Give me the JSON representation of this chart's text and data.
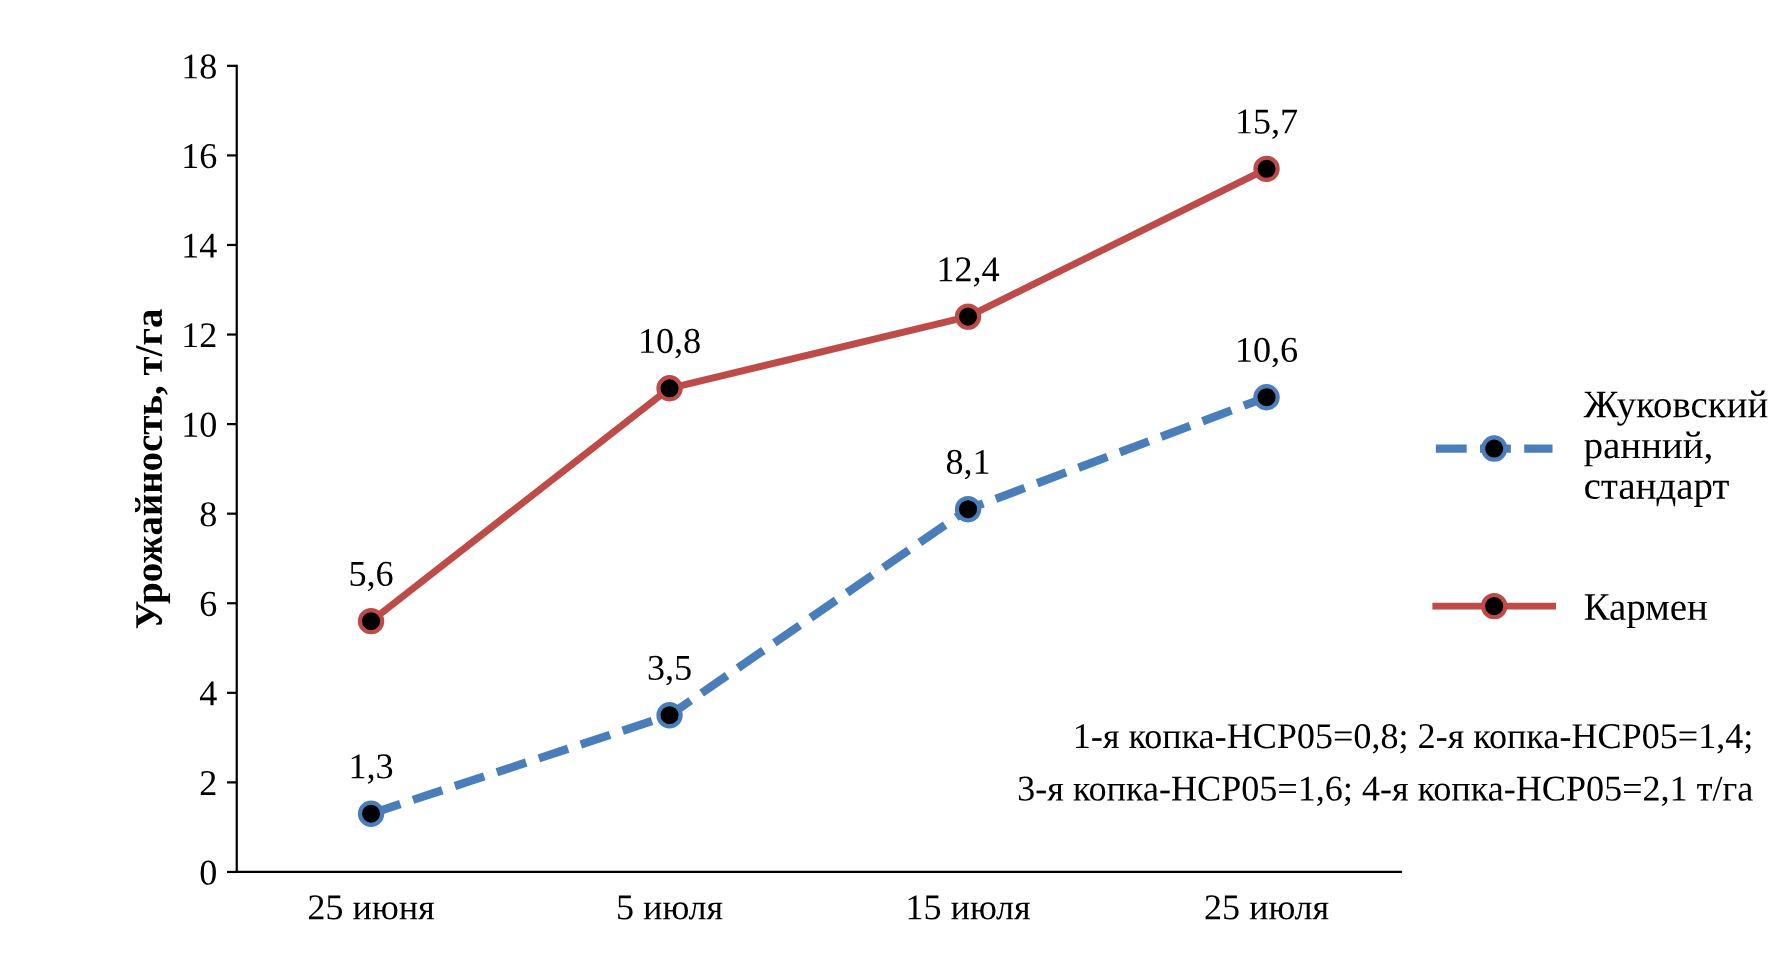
{
  "chart_data": {
    "type": "line",
    "ylabel": "Урожайность, т/га",
    "categories": [
      "25 июня",
      "5 июля",
      "15 июля",
      "25 июля"
    ],
    "series": [
      {
        "name": "Жуковский ранний, стандарт",
        "color": "#4a7ebb",
        "line_style": "dashed",
        "values": [
          1.3,
          3.5,
          8.1,
          10.6
        ],
        "value_labels": [
          "1,3",
          "3,5",
          "8,1",
          "10,6"
        ]
      },
      {
        "name": "Кармен",
        "color": "#be4b48",
        "line_style": "solid",
        "values": [
          5.6,
          10.8,
          12.4,
          15.7
        ],
        "value_labels": [
          "5,6",
          "10,8",
          "12,4",
          "15,7"
        ]
      }
    ],
    "ylim": [
      0,
      18
    ],
    "yticks": [
      0,
      2,
      4,
      6,
      8,
      10,
      12,
      14,
      16,
      18
    ],
    "grid": false,
    "legend": "right",
    "marker": "circle",
    "annotations": [
      "1-я копка-НСР05=0,8; 2-я копка-НСР05=1,4;",
      "3-я копка-НСР05=1,6; 4-я копка-НСР05=2,1 т/га"
    ]
  }
}
